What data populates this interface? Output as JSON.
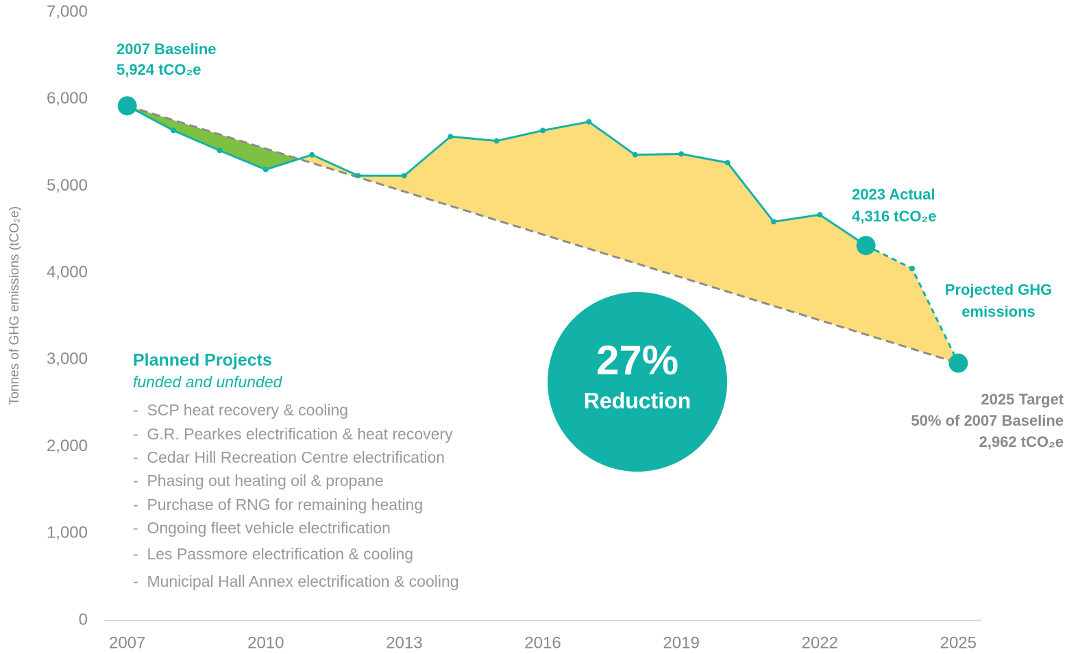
{
  "chart_data": {
    "type": "area-line",
    "y_label": "Tonnes of GHG emissions (tCO₂e)",
    "x": [
      2007,
      2008,
      2009,
      2010,
      2011,
      2012,
      2013,
      2014,
      2015,
      2016,
      2017,
      2018,
      2019,
      2020,
      2021,
      2022,
      2023,
      2024,
      2025
    ],
    "xlim": [
      2006.5,
      2025.5
    ],
    "xticks": [
      2007,
      2010,
      2013,
      2016,
      2019,
      2022,
      2025
    ],
    "ylim": [
      0,
      7000
    ],
    "yticks": [
      0,
      {
        "value": 1000,
        "label": "1,000"
      },
      {
        "value": 2000,
        "label": "2,000"
      },
      {
        "value": 3000,
        "label": "3,000"
      },
      {
        "value": 4000,
        "label": "4,000"
      },
      {
        "value": 5000,
        "label": "5,000"
      },
      {
        "value": 6000,
        "label": "6,000"
      },
      {
        "value": 7000,
        "label": "7,000"
      }
    ],
    "series": [
      {
        "color": "#12b2a8",
        "dashed": false,
        "values": [
          5924,
          5640,
          5410,
          5190,
          5360,
          5120,
          5120,
          5570,
          5520,
          5640,
          5740,
          5360,
          5370,
          5270,
          4590,
          4670,
          4316,
          null,
          null
        ]
      },
      {
        "color": "#12b2a8",
        "dashed": true,
        "values": [
          null,
          null,
          null,
          null,
          null,
          null,
          null,
          null,
          null,
          null,
          null,
          null,
          null,
          null,
          null,
          null,
          4316,
          4050,
          2962
        ]
      }
    ],
    "target": {
      "x": [
        2007,
        2025
      ],
      "values": [
        5924,
        2962
      ],
      "color": "#8c8c8c"
    },
    "fill_above": "#fddc7a",
    "fill_below": "#7cc142",
    "annotations": {
      "baseline": [
        "2007 Baseline",
        "5,924 tCO₂e"
      ],
      "actual": [
        "2023 Actual",
        "4,316 tCO₂e"
      ],
      "projected": [
        "Projected GHG",
        "emissions"
      ],
      "target": [
        "2025 Target",
        "50% of 2007 Baseline",
        "2,962 tCO₂e"
      ],
      "reduction": [
        "27%",
        "Reduction"
      ]
    },
    "projects": {
      "title": "Planned Projects",
      "subtitle": "funded and unfunded",
      "items": [
        "-  SCP heat recovery & cooling",
        "-  G.R. Pearkes electrification & heat recovery",
        "-  Cedar Hill Recreation Centre electrification",
        "-  Phasing out heating oil & propane",
        "-  Purchase of RNG for remaining heating",
        "-  Ongoing fleet vehicle electrification",
        "-  Les Passmore electrification & cooling",
        "-  Municipal Hall Annex electrification & cooling"
      ]
    }
  }
}
